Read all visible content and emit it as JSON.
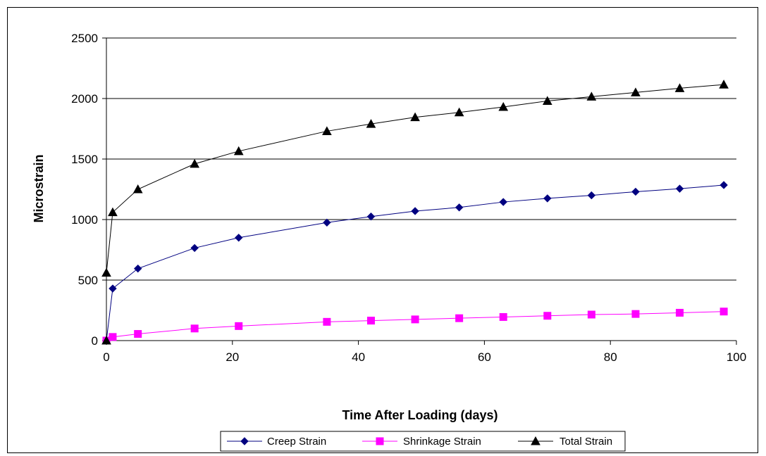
{
  "chart_data": {
    "type": "line",
    "title": "",
    "xlabel": "Time After Loading (days)",
    "ylabel": "Microstrain",
    "xlim": [
      0,
      100
    ],
    "ylim": [
      0,
      2500
    ],
    "xticks": [
      0,
      20,
      40,
      60,
      80,
      100
    ],
    "yticks": [
      0,
      500,
      1000,
      1500,
      2000,
      2500
    ],
    "grid": "horizontal",
    "legend_position": "bottom",
    "series": [
      {
        "name": "Creep Strain",
        "color": "#000080",
        "marker": "diamond",
        "x": [
          0,
          0,
          1,
          5,
          14,
          21,
          35,
          42,
          49,
          56,
          63,
          70,
          77,
          84,
          91,
          98
        ],
        "y": [
          0,
          0,
          430,
          595,
          765,
          850,
          975,
          1025,
          1070,
          1100,
          1145,
          1175,
          1200,
          1230,
          1255,
          1285
        ]
      },
      {
        "name": "Shrinkage Strain",
        "color": "#ff00ff",
        "marker": "square",
        "x": [
          0,
          1,
          5,
          14,
          21,
          35,
          42,
          49,
          56,
          63,
          70,
          77,
          84,
          91,
          98
        ],
        "y": [
          0,
          30,
          55,
          100,
          120,
          155,
          165,
          175,
          185,
          195,
          205,
          215,
          220,
          230,
          240
        ]
      },
      {
        "name": "Total Strain",
        "color": "#000000",
        "marker": "triangle",
        "x": [
          0,
          0,
          1,
          5,
          14,
          21,
          35,
          42,
          49,
          56,
          63,
          70,
          77,
          84,
          91,
          98
        ],
        "y": [
          0,
          560,
          1060,
          1250,
          1460,
          1565,
          1730,
          1790,
          1845,
          1885,
          1930,
          1980,
          2015,
          2050,
          2085,
          2115
        ]
      }
    ]
  }
}
